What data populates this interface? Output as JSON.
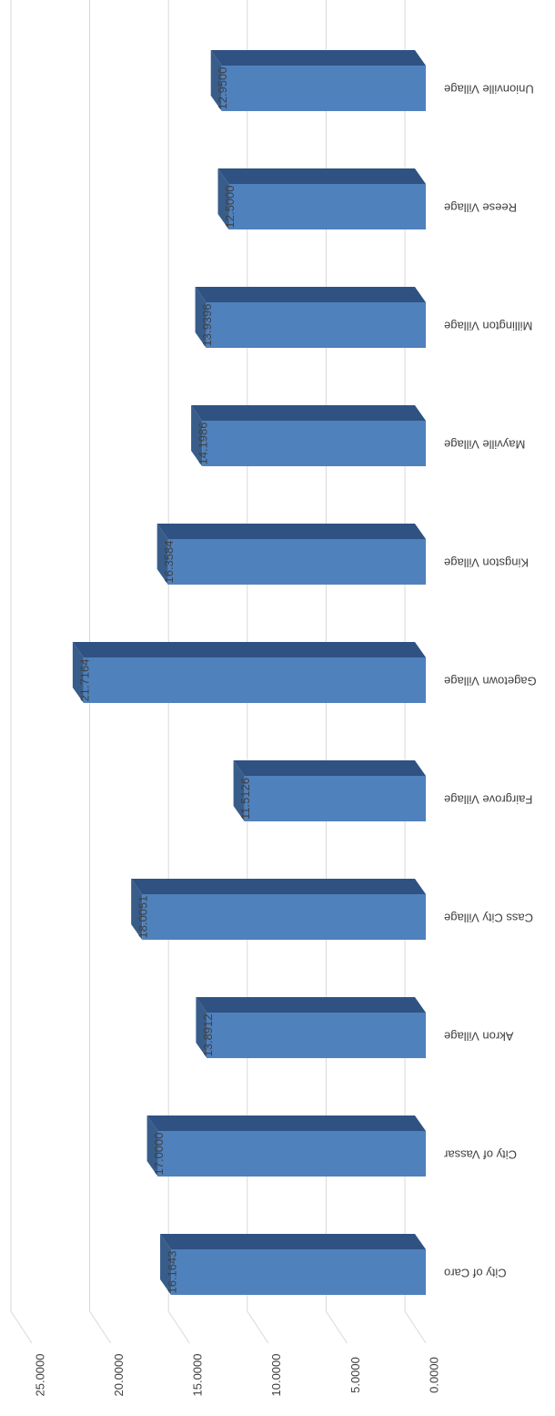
{
  "chart_data": {
    "type": "bar3d",
    "categories": [
      "City of Caro",
      "City of Vassar",
      "Akron Village",
      "Cass City Village",
      "Fairgrove Village",
      "Gagetown Village",
      "Kingston Village",
      "Mayville Village",
      "Millington Village",
      "Reese Village",
      "Unionville Village"
    ],
    "values": [
      16.1643,
      17,
      13.8912,
      18.0051,
      11.5126,
      21.7164,
      16.3584,
      14.1986,
      13.9396,
      12.5,
      12.95
    ],
    "value_labels": [
      "16.1643",
      "17.0000",
      "13.8912",
      "18.0051",
      "11.5126",
      "21.7164",
      "16.3584",
      "14.1986",
      "13.9396",
      "12.5000",
      "12.9500"
    ],
    "color": "#4f81bd",
    "ylim": [
      0,
      25
    ],
    "yticks": [
      {
        "value": 0,
        "label": "0.0000"
      },
      {
        "value": 5,
        "label": "5.0000"
      },
      {
        "value": 10,
        "label": "10.0000"
      },
      {
        "value": 15,
        "label": "15.0000"
      },
      {
        "value": 20,
        "label": "20.0000"
      },
      {
        "value": 25,
        "label": "25.0000"
      }
    ],
    "grid": true
  }
}
